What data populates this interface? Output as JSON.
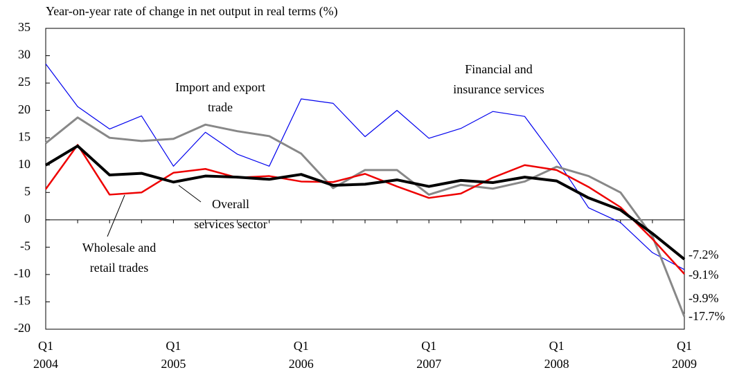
{
  "chart_data": {
    "type": "line",
    "title": "Year-on-year rate of change in net output in real terms (%)",
    "categories": [
      "Q1 2004",
      null,
      null,
      null,
      "Q1 2005",
      null,
      null,
      null,
      "Q1 2006",
      null,
      null,
      null,
      "Q1 2007",
      null,
      null,
      null,
      "Q1 2008",
      null,
      null,
      null,
      "Q1 2009"
    ],
    "ylim": [
      -20,
      35
    ],
    "yticks": [
      -20,
      -15,
      -10,
      -5,
      0,
      5,
      10,
      15,
      20,
      25,
      30,
      35
    ],
    "series": [
      {
        "name": "Financial and insurance services",
        "color": "#0000ee",
        "values": [
          28.5,
          20.7,
          16.6,
          19,
          9.8,
          16,
          12,
          9.8,
          22.1,
          21.3,
          15.2,
          20,
          14.9,
          16.7,
          19.8,
          18.9,
          11,
          2.2,
          -0.5,
          -6,
          -9.1
        ],
        "value_labels": [
          null,
          null,
          null,
          null,
          null,
          null,
          null,
          null,
          null,
          null,
          null,
          null,
          null,
          null,
          null,
          null,
          null,
          null,
          null,
          null,
          "-9.1%"
        ]
      },
      {
        "name": "Import and export trade",
        "color": "#888888",
        "values": [
          14,
          18.7,
          15,
          14.4,
          14.8,
          17.4,
          16.2,
          15.3,
          12.1,
          5.8,
          9.1,
          9.1,
          4.6,
          6.4,
          5.7,
          7,
          9.7,
          8,
          5,
          -3,
          -17.7
        ],
        "value_labels": [
          null,
          null,
          null,
          null,
          null,
          null,
          null,
          null,
          null,
          null,
          null,
          null,
          null,
          null,
          null,
          null,
          null,
          null,
          null,
          null,
          "-17.7%"
        ]
      },
      {
        "name": "Wholesale and retail trades",
        "color": "#ee0000",
        "values": [
          5.6,
          13.7,
          4.6,
          5,
          8.6,
          9.3,
          7.7,
          8,
          7,
          6.9,
          8.4,
          6.1,
          4,
          4.8,
          7.7,
          10,
          9.1,
          6,
          2.3,
          -3.5,
          -9.9
        ],
        "value_labels": [
          null,
          null,
          null,
          null,
          null,
          null,
          null,
          null,
          null,
          null,
          null,
          null,
          null,
          null,
          null,
          null,
          null,
          null,
          null,
          null,
          "-9.9%"
        ]
      },
      {
        "name": "Overall services sector",
        "color": "#000000",
        "values": [
          10,
          13.5,
          8.2,
          8.5,
          6.9,
          8,
          7.8,
          7.4,
          8.3,
          6.3,
          6.5,
          7.3,
          6.1,
          7.2,
          6.8,
          7.8,
          7.1,
          4,
          1.8,
          -2.5,
          -7.2
        ],
        "value_labels": [
          null,
          null,
          null,
          null,
          null,
          null,
          null,
          null,
          null,
          null,
          null,
          null,
          null,
          null,
          null,
          null,
          null,
          null,
          null,
          null,
          "-7.2%"
        ]
      }
    ]
  }
}
